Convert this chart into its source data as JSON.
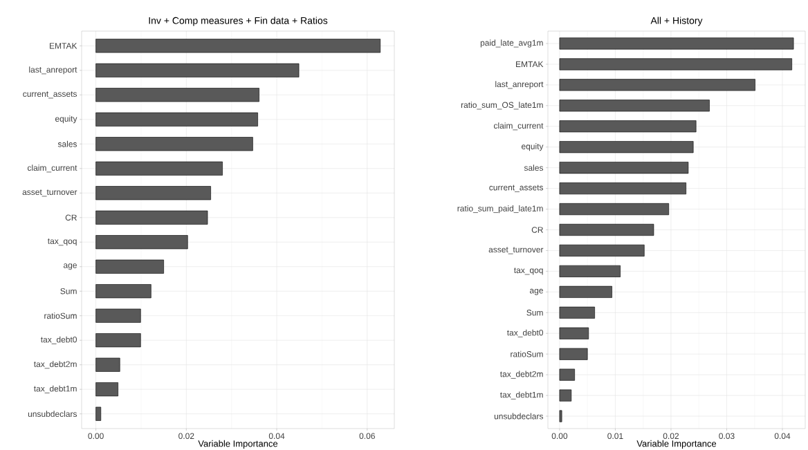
{
  "chart_data": [
    {
      "type": "bar",
      "orientation": "horizontal",
      "title": "Inv + Comp measures + Fin data + Ratios",
      "xlabel": "Variable Importance",
      "categories": [
        "EMTAK",
        "last_anreport",
        "current_assets",
        "equity",
        "sales",
        "claim_current",
        "asset_turnover",
        "CR",
        "tax_qoq",
        "age",
        "Sum",
        "ratioSum",
        "tax_debt0",
        "tax_debt2m",
        "tax_debt1m",
        "unsubdeclars"
      ],
      "values": [
        0.0629,
        0.0449,
        0.0361,
        0.0358,
        0.0347,
        0.028,
        0.0254,
        0.0247,
        0.0203,
        0.015,
        0.0122,
        0.0099,
        0.0099,
        0.0053,
        0.0049,
        0.0011
      ],
      "color": "#595959",
      "xlim": [
        -0.00315,
        0.066
      ],
      "xticks": [
        {
          "value": 0,
          "label": "0.00"
        },
        {
          "value": 0.02,
          "label": "0.02"
        },
        {
          "value": 0.04,
          "label": "0.04"
        },
        {
          "value": 0.06,
          "label": "0.06"
        }
      ],
      "grid": true
    },
    {
      "type": "bar",
      "orientation": "horizontal",
      "title": "All + History",
      "xlabel": "Variable Importance",
      "categories": [
        "paid_late_avg1m",
        "EMTAK",
        "last_anreport",
        "ratio_sum_OS_late1m",
        "claim_current",
        "equity",
        "sales",
        "current_assets",
        "ratio_sum_paid_late1m",
        "CR",
        "asset_turnover",
        "tax_qoq",
        "age",
        "Sum",
        "tax_debt0",
        "ratioSum",
        "tax_debt2m",
        "tax_debt1m",
        "unsubdeclars"
      ],
      "values": [
        0.042,
        0.0417,
        0.0351,
        0.0269,
        0.0245,
        0.024,
        0.0231,
        0.0227,
        0.0196,
        0.0169,
        0.0152,
        0.0109,
        0.0094,
        0.0063,
        0.0052,
        0.005,
        0.0027,
        0.0021,
        0.0004
      ],
      "color": "#595959",
      "xlim": [
        -0.0021,
        0.0441
      ],
      "xticks": [
        {
          "value": 0,
          "label": "0.00"
        },
        {
          "value": 0.01,
          "label": "0.01"
        },
        {
          "value": 0.02,
          "label": "0.02"
        },
        {
          "value": 0.03,
          "label": "0.03"
        },
        {
          "value": 0.04,
          "label": "0.04"
        }
      ],
      "grid": true
    }
  ]
}
